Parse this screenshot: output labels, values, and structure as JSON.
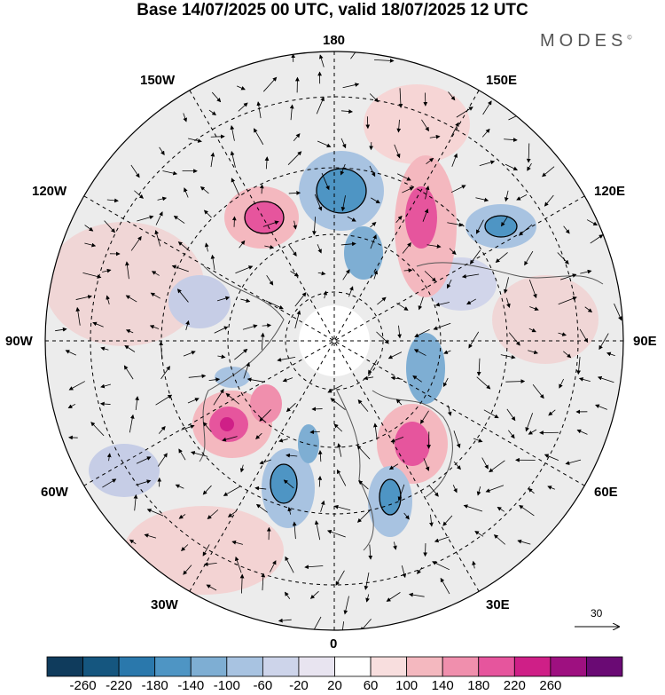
{
  "title": "Base 14/07/2025 00 UTC, valid 18/07/2025 12 UTC",
  "brand": "MODES",
  "brand_mark": "©",
  "longitude_labels": {
    "lon_180": "180",
    "lon_150W": "150W",
    "lon_150E": "150E",
    "lon_120W": "120W",
    "lon_120E": "120E",
    "lon_90W": "90W",
    "lon_90E": "90E",
    "lon_60W": "60W",
    "lon_60E": "60E",
    "lon_30W": "30W",
    "lon_30E": "30E",
    "lon_0": "0"
  },
  "colorbar": {
    "colors": [
      "#0f3b5c",
      "#15567f",
      "#2a78ac",
      "#4e95c4",
      "#7eaed3",
      "#a8c3e1",
      "#cdd4ea",
      "#e8e4f0",
      "#ffffff",
      "#f8dede",
      "#f4b8bf",
      "#f08fad",
      "#e6559d",
      "#cf1f87",
      "#9e1080",
      "#6a0a74"
    ],
    "ticks": [
      "-260",
      "-220",
      "-180",
      "-140",
      "-100",
      "-60",
      "-20",
      "20",
      "60",
      "100",
      "140",
      "180",
      "220",
      "260"
    ]
  },
  "reference_vector": {
    "value": "30"
  }
}
